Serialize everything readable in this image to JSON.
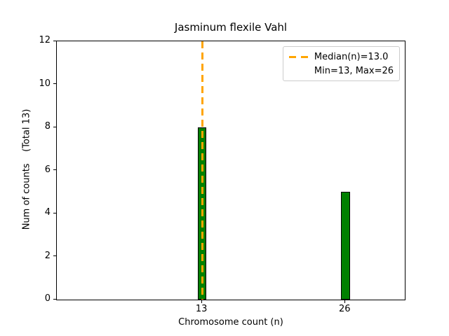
{
  "figure": {
    "kind": "matplotlib-style bar histogram"
  },
  "legend": {
    "entries": [
      {
        "label": "Median(n)=13.0",
        "marker": "dashed-line",
        "color": "#FFA500"
      },
      {
        "label": "Min=13, Max=26",
        "marker": "none"
      }
    ]
  },
  "chart_data": {
    "type": "bar",
    "title": "Jasminum flexile Vahl",
    "xlabel": "Chromosome count (n)",
    "ylabel": "Num of counts    (Total 13)",
    "x": [
      13,
      26
    ],
    "values": [
      8,
      5
    ],
    "bar_color": "#008000",
    "bar_edge_color": "#000000",
    "bar_width": 0.8,
    "xlim": [
      -0.2,
      31.4
    ],
    "ylim": [
      0,
      12
    ],
    "xticks": [
      13,
      26
    ],
    "yticks": [
      0,
      2,
      4,
      6,
      8,
      10,
      12
    ],
    "median_line": {
      "x": 13,
      "color": "#FFA500",
      "style": "dashed",
      "label": "Median(n)=13.0"
    },
    "min": 13,
    "max": 26,
    "total_counts": 13,
    "grid": false,
    "legend_position": "upper right"
  }
}
